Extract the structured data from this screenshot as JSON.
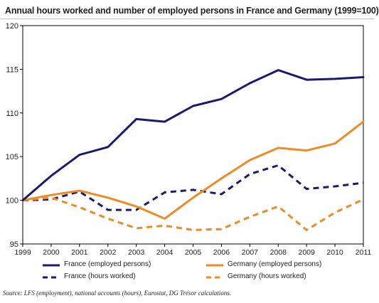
{
  "chart_data": {
    "type": "line",
    "title": "Annual hours worked and number of employed persons in France and Germany (1999=100)",
    "xlabel": "",
    "ylabel": "",
    "x": [
      "1999",
      "2000",
      "2001",
      "2002",
      "2003",
      "2004",
      "2005",
      "2006",
      "2007",
      "2008",
      "2009",
      "2010",
      "2011"
    ],
    "ylim": [
      95,
      120
    ],
    "yticks": [
      95,
      100,
      105,
      110,
      115,
      120
    ],
    "grid": false,
    "legend_position": "bottom",
    "series": [
      {
        "name": "France (employed persons)",
        "color": "#1a1a6e",
        "dash": "solid",
        "values": [
          100,
          102.8,
          105.2,
          106.1,
          109.3,
          109.0,
          110.8,
          111.6,
          113.4,
          114.9,
          113.8,
          113.9,
          114.1
        ]
      },
      {
        "name": "Germany (employed persons)",
        "color": "#f08a24",
        "dash": "solid",
        "values": [
          100,
          100.6,
          101.1,
          100.3,
          99.3,
          97.9,
          100.3,
          102.5,
          104.6,
          106.0,
          105.7,
          106.5,
          109.0
        ]
      },
      {
        "name": "France (hours worked)",
        "color": "#1a1a6e",
        "dash": "dashed",
        "values": [
          100,
          100.1,
          101.0,
          98.9,
          98.9,
          100.9,
          101.2,
          100.7,
          103.0,
          104.0,
          101.3,
          101.6,
          102.0
        ]
      },
      {
        "name": "Germany (hours worked)",
        "color": "#f08a24",
        "dash": "dashed",
        "values": [
          100,
          100.3,
          99.2,
          97.9,
          96.8,
          97.1,
          96.6,
          96.7,
          98.1,
          99.3,
          96.6,
          98.6,
          100.1
        ]
      }
    ]
  },
  "source": "Source: LFS (employment), national accounts (hours), Eurostat, DG Trésor calculations."
}
